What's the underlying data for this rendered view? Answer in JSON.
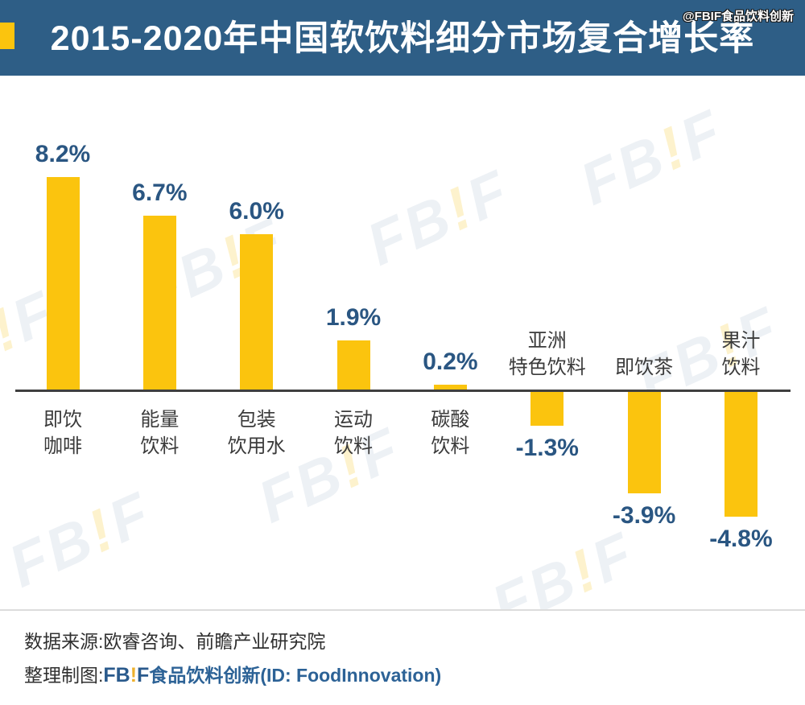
{
  "header": {
    "title": "2015-2020年中国软饮料细分市场复合增长率",
    "watermark": "@FBIF食品饮料创新"
  },
  "chart_data": {
    "type": "bar",
    "title": "2015-2020年中国软饮料细分市场复合增长率",
    "categories": [
      "即饮咖啡",
      "能量饮料",
      "包装饮用水",
      "运动饮料",
      "碳酸饮料",
      "亚洲特色饮料",
      "即饮茶",
      "果汁饮料"
    ],
    "category_lines": [
      [
        "即饮",
        "咖啡"
      ],
      [
        "能量",
        "饮料"
      ],
      [
        "包装",
        "饮用水"
      ],
      [
        "运动",
        "饮料"
      ],
      [
        "碳酸",
        "饮料"
      ],
      [
        "亚洲",
        "特色饮料"
      ],
      [
        "即饮茶"
      ],
      [
        "果汁",
        "饮料"
      ]
    ],
    "values": [
      8.2,
      6.7,
      6.0,
      1.9,
      0.2,
      -1.3,
      -3.9,
      -4.8
    ],
    "value_labels": [
      "8.2%",
      "6.7%",
      "6.0%",
      "1.9%",
      "0.2%",
      "-1.3%",
      "-3.9%",
      "-4.8%"
    ],
    "unit": "%",
    "xlabel": "",
    "ylabel": "",
    "ylim": [
      -4.8,
      8.2
    ],
    "grid": false,
    "legend": "none",
    "baseline": 0
  },
  "watermark": {
    "text": "FB!F",
    "parts": [
      {
        "text": "FB",
        "color": "#edf1f5"
      },
      {
        "text": "!",
        "color": "#fdf2cd"
      },
      {
        "text": "F",
        "color": "#edf1f5"
      }
    ]
  },
  "footer": {
    "source_line": "数据来源:欧睿咨询、前瞻产业研究院",
    "credit_prefix": "整理制图:",
    "logo_parts": [
      {
        "text": "FB",
        "color": "#2a5a8c"
      },
      {
        "text": "!",
        "color": "#eeb12d"
      },
      {
        "text": "F",
        "color": "#2a5a8c"
      }
    ],
    "credit_suffix": "食品饮料创新(ID: FoodInnovation)"
  },
  "colors": {
    "header_bg": "#2e5e86",
    "accent": "#fbc40e",
    "bar": "#fbc40e",
    "value_label": "#2a5682",
    "category_label": "#3b3b3b",
    "axis": "#3f3f3f",
    "footer_brand": "#2c6296",
    "divider": "#dcdcdc"
  }
}
